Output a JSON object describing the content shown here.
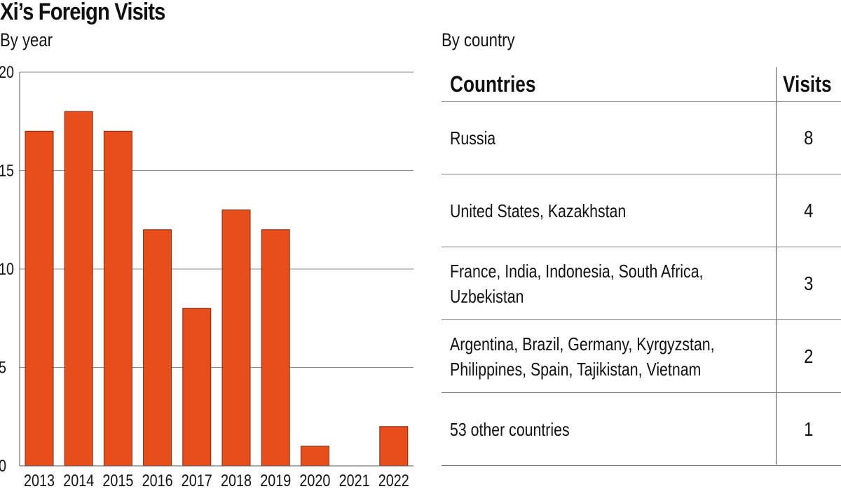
{
  "header": {
    "title": "Xi’s Foreign Visits",
    "left_subtitle": "By year",
    "right_subtitle": "By country"
  },
  "chart_data": {
    "type": "bar",
    "title": "Xi’s Foreign Visits",
    "subtitle": "By year",
    "categories": [
      "2013",
      "2014",
      "2015",
      "2016",
      "2017",
      "2018",
      "2019",
      "2020",
      "2021",
      "2022"
    ],
    "values": [
      17,
      18,
      17,
      12,
      8,
      13,
      12,
      1,
      0,
      2
    ],
    "ylim": [
      0,
      20
    ],
    "yticks": [
      0,
      5,
      10,
      15,
      20
    ],
    "grid": true,
    "bar_color": "#e84e1b"
  },
  "table": {
    "headers": {
      "countries": "Countries",
      "visits": "Visits"
    },
    "rows": [
      {
        "countries": "Russia",
        "visits": "8"
      },
      {
        "countries": "United States, Kazakhstan",
        "visits": "4"
      },
      {
        "countries": "France, India, Indonesia, South Africa,\nUzbekistan",
        "visits": "3"
      },
      {
        "countries": "Argentina, Brazil, Germany, Kyrgyzstan,\nPhilippines, Spain, Tajikistan, Vietnam",
        "visits": "2"
      },
      {
        "countries": "53 other countries",
        "visits": "1"
      }
    ]
  }
}
